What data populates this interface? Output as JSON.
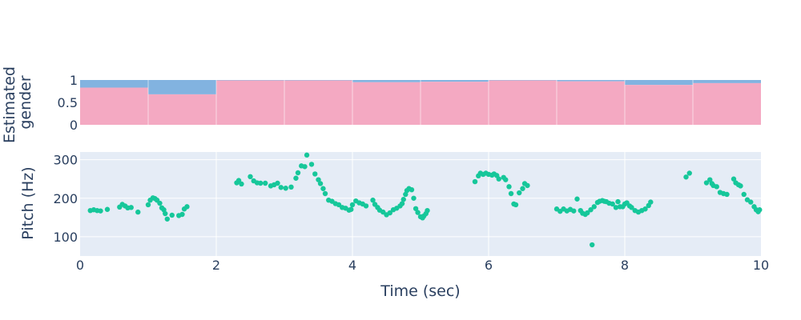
{
  "chart_data": [
    {
      "type": "area",
      "name": "gender-panel",
      "ylabel": "Estimated\ngender",
      "ylabel_lines": [
        "Estimated",
        "gender"
      ],
      "xlim": [
        0,
        10
      ],
      "ylim": [
        0,
        1
      ],
      "yticks": [
        0,
        0.5,
        1
      ],
      "ytick_labels": [
        "0",
        "0.5",
        "1"
      ],
      "segments": [
        {
          "start": 0,
          "end": 1,
          "female": 0.83
        },
        {
          "start": 1,
          "end": 2,
          "female": 0.68
        },
        {
          "start": 2,
          "end": 3,
          "female": 0.99
        },
        {
          "start": 3,
          "end": 4,
          "female": 0.99
        },
        {
          "start": 4,
          "end": 5,
          "female": 0.95
        },
        {
          "start": 5,
          "end": 6,
          "female": 0.96
        },
        {
          "start": 6,
          "end": 7,
          "female": 0.99
        },
        {
          "start": 7,
          "end": 8,
          "female": 0.97
        },
        {
          "start": 8,
          "end": 9,
          "female": 0.89
        },
        {
          "start": 9,
          "end": 10,
          "female": 0.93
        }
      ],
      "colors": {
        "female": "#f4a9c2",
        "male": "#82b3e0"
      },
      "grid": false
    },
    {
      "type": "scatter",
      "name": "pitch-panel",
      "xlabel": "Time (sec)",
      "ylabel": "Pitch (Hz)",
      "xlim": [
        0,
        10
      ],
      "ylim": [
        50,
        320
      ],
      "xticks": [
        0,
        2,
        4,
        6,
        8,
        10
      ],
      "xtick_labels": [
        "0",
        "2",
        "4",
        "6",
        "8",
        "10"
      ],
      "yticks": [
        100,
        200,
        300
      ],
      "ytick_labels": [
        "100",
        "200",
        "300"
      ],
      "grid": true,
      "colors": {
        "marker": "#16c79a",
        "background": "#e5ecf6",
        "grid": "#ffffff"
      },
      "points": [
        [
          0.15,
          168
        ],
        [
          0.2,
          170
        ],
        [
          0.25,
          168
        ],
        [
          0.3,
          167
        ],
        [
          0.4,
          171
        ],
        [
          0.58,
          177
        ],
        [
          0.62,
          184
        ],
        [
          0.66,
          180
        ],
        [
          0.7,
          175
        ],
        [
          0.75,
          176
        ],
        [
          0.85,
          164
        ],
        [
          1.0,
          183
        ],
        [
          1.03,
          195
        ],
        [
          1.07,
          201
        ],
        [
          1.1,
          199
        ],
        [
          1.13,
          195
        ],
        [
          1.17,
          187
        ],
        [
          1.2,
          175
        ],
        [
          1.23,
          170
        ],
        [
          1.25,
          160
        ],
        [
          1.28,
          146
        ],
        [
          1.35,
          156
        ],
        [
          1.45,
          155
        ],
        [
          1.5,
          158
        ],
        [
          1.53,
          172
        ],
        [
          1.57,
          178
        ],
        [
          2.3,
          240
        ],
        [
          2.33,
          246
        ],
        [
          2.37,
          237
        ],
        [
          2.5,
          256
        ],
        [
          2.55,
          245
        ],
        [
          2.6,
          240
        ],
        [
          2.65,
          239
        ],
        [
          2.72,
          239
        ],
        [
          2.8,
          232
        ],
        [
          2.85,
          235
        ],
        [
          2.9,
          239
        ],
        [
          2.95,
          228
        ],
        [
          3.02,
          226
        ],
        [
          3.1,
          229
        ],
        [
          3.17,
          252
        ],
        [
          3.2,
          266
        ],
        [
          3.25,
          284
        ],
        [
          3.3,
          282
        ],
        [
          3.33,
          312
        ],
        [
          3.4,
          288
        ],
        [
          3.45,
          263
        ],
        [
          3.5,
          248
        ],
        [
          3.53,
          238
        ],
        [
          3.57,
          225
        ],
        [
          3.6,
          212
        ],
        [
          3.65,
          195
        ],
        [
          3.7,
          192
        ],
        [
          3.75,
          186
        ],
        [
          3.8,
          183
        ],
        [
          3.85,
          176
        ],
        [
          3.9,
          174
        ],
        [
          3.95,
          169
        ],
        [
          3.98,
          171
        ],
        [
          4.0,
          183
        ],
        [
          4.05,
          193
        ],
        [
          4.1,
          188
        ],
        [
          4.15,
          185
        ],
        [
          4.2,
          180
        ],
        [
          4.3,
          195
        ],
        [
          4.33,
          184
        ],
        [
          4.37,
          176
        ],
        [
          4.4,
          169
        ],
        [
          4.45,
          164
        ],
        [
          4.5,
          157
        ],
        [
          4.55,
          162
        ],
        [
          4.6,
          170
        ],
        [
          4.65,
          174
        ],
        [
          4.7,
          180
        ],
        [
          4.73,
          186
        ],
        [
          4.75,
          197
        ],
        [
          4.78,
          210
        ],
        [
          4.8,
          220
        ],
        [
          4.83,
          225
        ],
        [
          4.87,
          222
        ],
        [
          4.9,
          200
        ],
        [
          4.93,
          173
        ],
        [
          4.96,
          163
        ],
        [
          5.0,
          152
        ],
        [
          5.03,
          149
        ],
        [
          5.05,
          154
        ],
        [
          5.08,
          160
        ],
        [
          5.1,
          168
        ],
        [
          5.8,
          243
        ],
        [
          5.85,
          258
        ],
        [
          5.88,
          265
        ],
        [
          5.92,
          262
        ],
        [
          5.96,
          265
        ],
        [
          6.0,
          262
        ],
        [
          6.05,
          260
        ],
        [
          6.08,
          263
        ],
        [
          6.12,
          259
        ],
        [
          6.15,
          250
        ],
        [
          6.22,
          254
        ],
        [
          6.25,
          248
        ],
        [
          6.3,
          230
        ],
        [
          6.33,
          212
        ],
        [
          6.37,
          185
        ],
        [
          6.4,
          183
        ],
        [
          6.45,
          214
        ],
        [
          6.5,
          225
        ],
        [
          6.53,
          238
        ],
        [
          6.57,
          233
        ],
        [
          7.0,
          172
        ],
        [
          7.05,
          166
        ],
        [
          7.1,
          172
        ],
        [
          7.15,
          167
        ],
        [
          7.2,
          171
        ],
        [
          7.25,
          167
        ],
        [
          7.3,
          198
        ],
        [
          7.35,
          168
        ],
        [
          7.38,
          161
        ],
        [
          7.42,
          158
        ],
        [
          7.45,
          162
        ],
        [
          7.5,
          170
        ],
        [
          7.52,
          79
        ],
        [
          7.55,
          178
        ],
        [
          7.6,
          189
        ],
        [
          7.63,
          192
        ],
        [
          7.67,
          194
        ],
        [
          7.7,
          192
        ],
        [
          7.73,
          191
        ],
        [
          7.77,
          187
        ],
        [
          7.82,
          185
        ],
        [
          7.87,
          176
        ],
        [
          7.9,
          191
        ],
        [
          7.93,
          178
        ],
        [
          7.97,
          178
        ],
        [
          8.0,
          185
        ],
        [
          8.03,
          188
        ],
        [
          8.07,
          180
        ],
        [
          8.1,
          176
        ],
        [
          8.15,
          168
        ],
        [
          8.2,
          164
        ],
        [
          8.25,
          168
        ],
        [
          8.3,
          172
        ],
        [
          8.35,
          181
        ],
        [
          8.38,
          190
        ],
        [
          8.9,
          255
        ],
        [
          8.95,
          265
        ],
        [
          9.2,
          240
        ],
        [
          9.25,
          248
        ],
        [
          9.28,
          238
        ],
        [
          9.3,
          233
        ],
        [
          9.35,
          230
        ],
        [
          9.4,
          215
        ],
        [
          9.45,
          212
        ],
        [
          9.5,
          210
        ],
        [
          9.6,
          250
        ],
        [
          9.63,
          240
        ],
        [
          9.67,
          235
        ],
        [
          9.7,
          232
        ],
        [
          9.75,
          210
        ],
        [
          9.8,
          196
        ],
        [
          9.85,
          190
        ],
        [
          9.9,
          178
        ],
        [
          9.93,
          170
        ],
        [
          9.96,
          165
        ],
        [
          9.98,
          170
        ]
      ]
    }
  ]
}
